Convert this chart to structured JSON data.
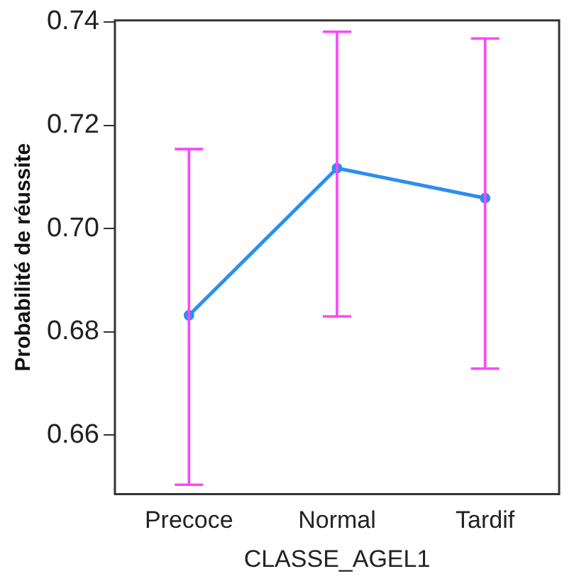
{
  "chart_data": {
    "type": "line",
    "xlabel": "CLASSE_AGEL1",
    "ylabel": "Probabilité de réussite",
    "categories": [
      "Precoce",
      "Normal",
      "Tardif"
    ],
    "series": [
      {
        "color": "#2b8ef0",
        "values": [
          0.6832,
          0.7117,
          0.7059
        ],
        "errors": [
          [
            0.6504,
            0.7154
          ],
          [
            0.683,
            0.7381
          ],
          [
            0.6729,
            0.7368
          ]
        ]
      }
    ],
    "ylim": [
      0.6486,
      0.7403
    ],
    "yticks": [
      0.66,
      0.68,
      {
        "value": 0.7,
        "label": "0.70"
      },
      0.72,
      0.74
    ],
    "grid": false,
    "legend": false,
    "marker": "circle",
    "line_style": "solid"
  }
}
